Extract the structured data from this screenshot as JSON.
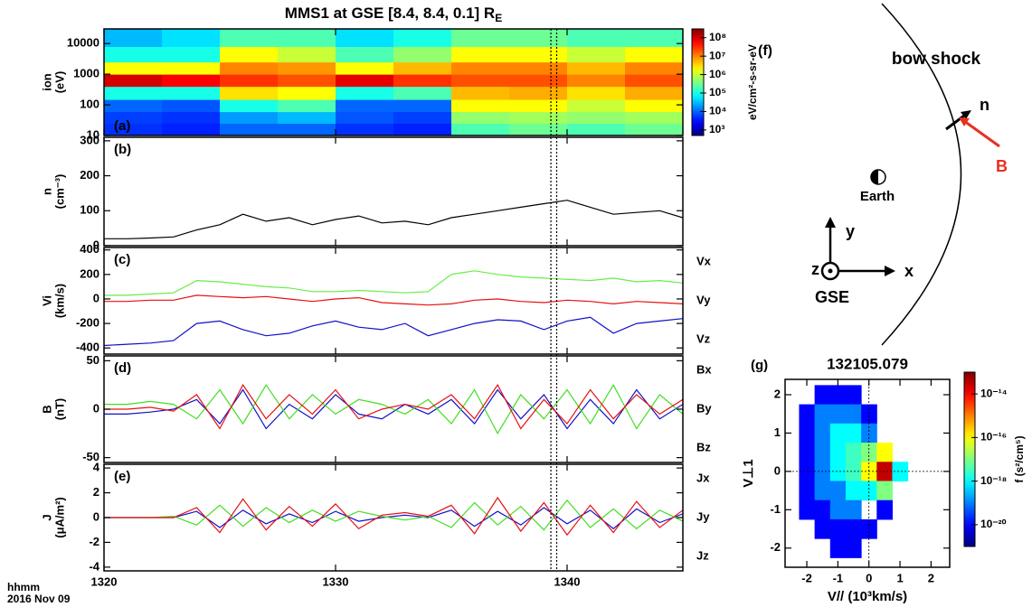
{
  "title": "MMS1 at GSE [8.4, 8.4, 0.1] R",
  "title_subscript": "E",
  "time_label": "hhmm",
  "date_label": "2016 Nov 09",
  "marker_times": [
    1339.3,
    1339.55
  ],
  "chart_data": [
    {
      "type": "heatmap",
      "panel_label": "(a)",
      "ylabel": [
        "ion",
        "(eV)"
      ],
      "x_edges": [
        1320,
        1322.5,
        1325,
        1327.5,
        1330,
        1332.5,
        1335,
        1337.5,
        1340,
        1342.5,
        1345
      ],
      "y_edges": [
        10,
        25,
        60,
        150,
        400,
        1000,
        2500,
        8000,
        30000
      ],
      "values": [
        [
          5000.0,
          4000.0,
          10000.0,
          10000.0,
          5000.0,
          4000.0,
          200000.0,
          300000.0,
          200000.0,
          300000.0
        ],
        [
          6000.0,
          5000.0,
          20000.0,
          30000.0,
          8000.0,
          6000.0,
          500000.0,
          600000.0,
          500000.0,
          600000.0
        ],
        [
          10000.0,
          8000.0,
          100000.0,
          200000.0,
          10000.0,
          10000.0,
          2000000.0,
          2000000.0,
          1000000.0,
          2000000.0
        ],
        [
          100000.0,
          100000.0,
          3000000.0,
          2000000.0,
          100000.0,
          200000.0,
          5000000.0,
          6000000.0,
          3000000.0,
          6000000.0
        ],
        [
          100000000.0,
          60000000.0,
          30000000.0,
          20000000.0,
          80000000.0,
          30000000.0,
          20000000.0,
          20000000.0,
          10000000.0,
          20000000.0
        ],
        [
          2000000.0,
          2000000.0,
          10000000.0,
          8000000.0,
          2000000.0,
          5000000.0,
          10000000.0,
          10000000.0,
          5000000.0,
          10000000.0
        ],
        [
          100000.0,
          100000.0,
          2000000.0,
          1000000.0,
          200000.0,
          500000.0,
          2000000.0,
          2000000.0,
          1000000.0,
          2000000.0
        ],
        [
          30000.0,
          50000.0,
          200000.0,
          200000.0,
          50000.0,
          100000.0,
          300000.0,
          300000.0,
          200000.0,
          200000.0
        ]
      ],
      "ylog": true,
      "ylim": [
        10,
        30000
      ],
      "yticks": [
        10,
        100,
        1000,
        10000
      ],
      "xlim": [
        1320,
        1345
      ],
      "clim": [
        500,
        300000000
      ],
      "cticks": [
        {
          "value": 1000,
          "label": "10³"
        },
        {
          "value": 10000,
          "label": "10⁴"
        },
        {
          "value": 100000,
          "label": "10⁵"
        },
        {
          "value": 1000000,
          "label": "10⁶"
        },
        {
          "value": 10000000,
          "label": "10⁷"
        },
        {
          "value": 100000000,
          "label": "10⁸"
        }
      ],
      "clabel": "eV/cm²-s-sr-eV"
    },
    {
      "type": "line",
      "panel_label": "(b)",
      "ylabel": [
        "n",
        "(cm⁻³)"
      ],
      "x": [
        1320,
        1321,
        1322,
        1323,
        1324,
        1325,
        1326,
        1327,
        1328,
        1329,
        1330,
        1331,
        1332,
        1333,
        1334,
        1335,
        1336,
        1337,
        1338,
        1339,
        1340,
        1341,
        1342,
        1343,
        1344,
        1345
      ],
      "series": [
        {
          "color": "#000000",
          "values": [
            20,
            20,
            22,
            25,
            45,
            60,
            90,
            70,
            80,
            60,
            75,
            85,
            65,
            70,
            60,
            80,
            90,
            100,
            110,
            120,
            130,
            110,
            90,
            95,
            100,
            80
          ]
        }
      ],
      "ylim": [
        0,
        310
      ],
      "yticks": [
        0,
        100,
        200,
        300
      ],
      "xlim": [
        1320,
        1345
      ]
    },
    {
      "type": "line",
      "panel_label": "(c)",
      "ylabel": [
        "Vi",
        "(km/s)"
      ],
      "x": [
        1320,
        1321,
        1322,
        1323,
        1324,
        1325,
        1326,
        1327,
        1328,
        1329,
        1330,
        1331,
        1332,
        1333,
        1334,
        1335,
        1336,
        1337,
        1338,
        1339,
        1340,
        1341,
        1342,
        1343,
        1344,
        1345
      ],
      "series": [
        {
          "name": "Vx",
          "color": "#1010c8",
          "values": [
            -380,
            -370,
            -360,
            -340,
            -200,
            -180,
            -250,
            -300,
            -280,
            -220,
            -180,
            -230,
            -250,
            -200,
            -300,
            -250,
            -200,
            -170,
            -180,
            -250,
            -180,
            -150,
            -280,
            -200,
            -180,
            -160
          ]
        },
        {
          "name": "Vy",
          "color": "#66ee44",
          "values": [
            30,
            30,
            40,
            50,
            150,
            140,
            120,
            100,
            90,
            60,
            60,
            70,
            60,
            50,
            60,
            200,
            230,
            200,
            180,
            170,
            160,
            150,
            170,
            140,
            150,
            130
          ]
        },
        {
          "name": "Vz",
          "color": "#e81010",
          "values": [
            -20,
            -20,
            -10,
            -10,
            30,
            20,
            10,
            20,
            0,
            -20,
            0,
            10,
            -30,
            -40,
            -50,
            -40,
            -10,
            0,
            -20,
            -30,
            -10,
            -20,
            -40,
            -20,
            -30,
            -40
          ]
        }
      ],
      "ylim": [
        -450,
        420
      ],
      "yticks": [
        -400,
        -200,
        0,
        200,
        400
      ],
      "xlim": [
        1320,
        1345
      ]
    },
    {
      "type": "line",
      "panel_label": "(d)",
      "ylabel": [
        "B",
        "(nT)"
      ],
      "x": [
        1320,
        1321,
        1322,
        1323,
        1324,
        1325,
        1326,
        1327,
        1328,
        1329,
        1330,
        1331,
        1332,
        1333,
        1334,
        1335,
        1336,
        1337,
        1338,
        1339,
        1340,
        1341,
        1342,
        1343,
        1344,
        1345
      ],
      "series": [
        {
          "name": "Bx",
          "color": "#1010c8",
          "values": [
            -5,
            -5,
            -3,
            0,
            10,
            -15,
            20,
            -20,
            5,
            -10,
            15,
            -5,
            -10,
            5,
            -5,
            10,
            -15,
            20,
            -10,
            15,
            -20,
            10,
            -15,
            20,
            -10,
            5
          ]
        },
        {
          "name": "By",
          "color": "#44dd22",
          "values": [
            5,
            5,
            8,
            5,
            -10,
            20,
            -15,
            25,
            -10,
            15,
            -5,
            10,
            5,
            -5,
            10,
            -15,
            20,
            -25,
            15,
            -10,
            20,
            -15,
            25,
            -20,
            15,
            -5
          ]
        },
        {
          "name": "Bz",
          "color": "#e81010",
          "values": [
            0,
            0,
            2,
            -2,
            15,
            -20,
            25,
            -10,
            15,
            -5,
            20,
            -10,
            0,
            5,
            0,
            15,
            -10,
            25,
            -20,
            10,
            -15,
            20,
            -10,
            15,
            -5,
            10
          ]
        }
      ],
      "ylim": [
        -55,
        55
      ],
      "yticks": [
        -50,
        0,
        50
      ],
      "xlim": [
        1320,
        1345
      ]
    },
    {
      "type": "line",
      "panel_label": "(e)",
      "ylabel": [
        "J",
        "(μA/m²)"
      ],
      "x": [
        1320,
        1321,
        1322,
        1323,
        1324,
        1325,
        1326,
        1327,
        1328,
        1329,
        1330,
        1331,
        1332,
        1333,
        1334,
        1335,
        1336,
        1337,
        1338,
        1339,
        1340,
        1341,
        1342,
        1343,
        1344,
        1345
      ],
      "series": [
        {
          "name": "Jx",
          "color": "#1010c8",
          "values": [
            0,
            0,
            0,
            0,
            0.5,
            -0.8,
            0.6,
            -0.5,
            0.3,
            -0.4,
            0.5,
            -0.3,
            0,
            0.2,
            0,
            0.6,
            -0.7,
            0.5,
            -0.6,
            0.8,
            -0.5,
            0.6,
            -0.9,
            0.7,
            -0.4,
            0.3
          ]
        },
        {
          "name": "Jy",
          "color": "#44dd22",
          "values": [
            0,
            0,
            0,
            0.1,
            -0.6,
            1.0,
            -0.7,
            0.8,
            -0.4,
            0.6,
            -0.3,
            0.5,
            0.1,
            -0.2,
            0.1,
            -0.8,
            1.2,
            -0.6,
            0.9,
            -1.0,
            1.4,
            -0.8,
            0.7,
            -0.9,
            0.6,
            -0.3
          ]
        },
        {
          "name": "Jz",
          "color": "#e81010",
          "values": [
            0,
            0,
            0,
            0,
            0.8,
            -1.2,
            1.5,
            -1.0,
            0.9,
            -0.7,
            1.1,
            -0.9,
            0.2,
            0.4,
            0.1,
            1.0,
            -1.3,
            1.6,
            -1.1,
            1.2,
            -1.4,
            1.0,
            -1.2,
            1.3,
            -0.8,
            0.6
          ]
        }
      ],
      "ylim": [
        -4.3,
        4.3
      ],
      "yticks": [
        -4,
        -2,
        0,
        2,
        4
      ],
      "xlim": [
        1320,
        1345
      ],
      "xticks": [
        1320,
        1330,
        1340
      ]
    },
    {
      "type": "heatmap",
      "panel_label": "(g)",
      "title": "132105.079",
      "xlabel": "V// (10³km/s)",
      "ylabel": [
        "V⊥1"
      ],
      "x_edges": [
        -2.25,
        -1.75,
        -1.25,
        -0.75,
        -0.25,
        0.25,
        0.75,
        1.25
      ],
      "y_edges": [
        2.25,
        1.75,
        1.25,
        0.75,
        0.25,
        -0.25,
        -0.75,
        -1.25,
        -1.75,
        -2.25
      ],
      "values": [
        [
          null,
          1e-20,
          1e-20,
          1e-20,
          null,
          null,
          null
        ],
        [
          1e-20,
          1e-19,
          1e-19,
          1e-19,
          1e-20,
          null,
          null
        ],
        [
          1e-20,
          1e-19,
          1e-18,
          1e-18,
          1e-19,
          null,
          null
        ],
        [
          1e-20,
          1e-19,
          1e-18,
          3e-18,
          1e-17,
          1e-16,
          null
        ],
        [
          1e-20,
          1e-19,
          1e-18,
          3e-18,
          1e-16,
          3e-14,
          1e-18
        ],
        [
          1e-20,
          1e-19,
          1e-19,
          1e-18,
          1e-18,
          1e-17,
          null
        ],
        [
          1e-20,
          1e-20,
          1e-19,
          1e-19,
          null,
          1e-20,
          null
        ],
        [
          null,
          1e-20,
          1e-20,
          1e-20,
          1e-20,
          null,
          null
        ],
        [
          null,
          null,
          1e-20,
          1e-20,
          null,
          null,
          null
        ]
      ],
      "ylog": false,
      "xlim": [
        -2.7,
        2.6
      ],
      "ylim": [
        -2.5,
        2.4
      ],
      "xticks": [
        -2,
        -1,
        0,
        1,
        2
      ],
      "yticks": [
        -2,
        -1,
        0,
        1,
        2
      ],
      "reference_lines": {
        "x": 0,
        "y": 0
      },
      "clim": [
        1e-21,
        1e-13
      ],
      "cticks": [
        {
          "value": 1e-14,
          "label": "10⁻¹⁴"
        },
        {
          "value": 1e-16,
          "label": "10⁻¹⁶"
        },
        {
          "value": 1e-18,
          "label": "10⁻¹⁸"
        },
        {
          "value": 1e-20,
          "label": "10⁻²⁰"
        }
      ],
      "clabel": "f (s²/cm⁵)"
    }
  ],
  "diagram": {
    "panel_label": "(f)",
    "bow_shock_label": "bow shock",
    "normal_label": "n",
    "field_label": "B",
    "earth_label": "Earth",
    "axis_labels": {
      "x": "x",
      "y": "y",
      "z": "z"
    },
    "frame_label": "GSE"
  }
}
